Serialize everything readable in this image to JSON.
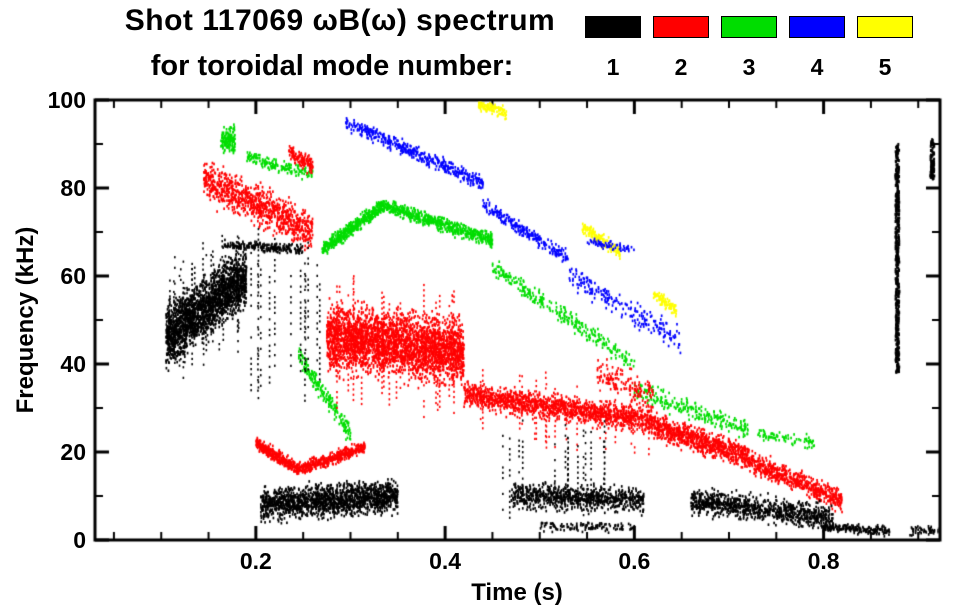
{
  "chart_data": {
    "type": "scatter",
    "title": "Shot 117069 ωB(ω) spectrum",
    "subtitle": "for toroidal mode number:",
    "xlabel": "Time (s)",
    "ylabel": "Frequency (kHz)",
    "xlim": [
      0.03,
      0.923
    ],
    "ylim": [
      0,
      100
    ],
    "grid": false,
    "legend_position": "top-right",
    "x_ticks": [
      {
        "value": 0.2,
        "label": "0.2"
      },
      {
        "value": 0.4,
        "label": "0.4"
      },
      {
        "value": 0.6,
        "label": "0.6"
      },
      {
        "value": 0.8,
        "label": "0.8"
      }
    ],
    "y_ticks": [
      {
        "value": 0,
        "label": "0"
      },
      {
        "value": 20,
        "label": "20"
      },
      {
        "value": 40,
        "label": "40"
      },
      {
        "value": 60,
        "label": "60"
      },
      {
        "value": 80,
        "label": "80"
      },
      {
        "value": 100,
        "label": "100"
      }
    ],
    "x_minor_step": 0.05,
    "y_minor_step": 10,
    "legend": [
      {
        "label": "1",
        "color": "#000000"
      },
      {
        "label": "2",
        "color": "#ff0000"
      },
      {
        "label": "3",
        "color": "#00dd00"
      },
      {
        "label": "4",
        "color": "#0000ff"
      },
      {
        "label": "5",
        "color": "#ffff00"
      }
    ],
    "series": [
      {
        "name": "toroidal mode n=5",
        "color": "#ffff00",
        "clusters": [
          {
            "kind": "blob",
            "t": [
              0.435,
              0.465
            ],
            "f": [
              99,
              97
            ],
            "spread": 1.8,
            "n": 110
          },
          {
            "kind": "blob",
            "t": [
              0.545,
              0.585
            ],
            "f": [
              71,
              65
            ],
            "spread": 2.2,
            "n": 140
          },
          {
            "kind": "blob",
            "t": [
              0.62,
              0.645
            ],
            "f": [
              56,
              52
            ],
            "spread": 1.8,
            "n": 90
          }
        ]
      },
      {
        "name": "toroidal mode n=4",
        "color": "#0000ff",
        "clusters": [
          {
            "kind": "blob",
            "t": [
              0.295,
              0.44
            ],
            "f": [
              95,
              81
            ],
            "spread": 2.3,
            "n": 430
          },
          {
            "kind": "blob",
            "t": [
              0.44,
              0.53
            ],
            "f": [
              76,
              64
            ],
            "spread": 2.3,
            "n": 240
          },
          {
            "kind": "blob",
            "t": [
              0.53,
              0.65
            ],
            "f": [
              60,
              45
            ],
            "spread": 4,
            "n": 210
          },
          {
            "kind": "blob",
            "t": [
              0.55,
              0.6
            ],
            "f": [
              68,
              66
            ],
            "spread": 1.5,
            "n": 60
          }
        ]
      },
      {
        "name": "toroidal mode n=3",
        "color": "#00dd00",
        "clusters": [
          {
            "kind": "blob",
            "t": [
              0.163,
              0.178
            ],
            "f": [
              91,
              91
            ],
            "spread": 4,
            "n": 140
          },
          {
            "kind": "blob",
            "t": [
              0.19,
              0.26
            ],
            "f": [
              87,
              83
            ],
            "spread": 2,
            "n": 160
          },
          {
            "kind": "blob",
            "t": [
              0.27,
              0.335
            ],
            "f": [
              66,
              76
            ],
            "spread": 2.2,
            "n": 520
          },
          {
            "kind": "blob",
            "t": [
              0.335,
              0.45
            ],
            "f": [
              76,
              68
            ],
            "spread": 2.2,
            "n": 620
          },
          {
            "kind": "blob",
            "t": [
              0.45,
              0.6
            ],
            "f": [
              62,
              40
            ],
            "spread": 3,
            "n": 300
          },
          {
            "kind": "blob",
            "t": [
              0.6,
              0.72
            ],
            "f": [
              34,
              25
            ],
            "spread": 3,
            "n": 250
          },
          {
            "kind": "blob",
            "t": [
              0.245,
              0.3
            ],
            "f": [
              42,
              24
            ],
            "spread": 3,
            "n": 200
          },
          {
            "kind": "blob",
            "t": [
              0.73,
              0.79
            ],
            "f": [
              24,
              22
            ],
            "spread": 2,
            "n": 80
          }
        ]
      },
      {
        "name": "toroidal mode n=2",
        "color": "#ff0000",
        "clusters": [
          {
            "kind": "blob",
            "t": [
              0.145,
              0.26
            ],
            "f": [
              82,
              70
            ],
            "spread": 6,
            "n": 900
          },
          {
            "kind": "blob",
            "t": [
              0.235,
              0.26
            ],
            "f": [
              88,
              85
            ],
            "spread": 2.5,
            "n": 130
          },
          {
            "kind": "blob",
            "t": [
              0.2,
              0.245
            ],
            "f": [
              22,
              16
            ],
            "spread": 2,
            "n": 350
          },
          {
            "kind": "blob",
            "t": [
              0.245,
              0.315
            ],
            "f": [
              16,
              21
            ],
            "spread": 2,
            "n": 420
          },
          {
            "kind": "blob",
            "t": [
              0.275,
              0.42
            ],
            "f": [
              46,
              43
            ],
            "spread": 10,
            "n": 3000
          },
          {
            "kind": "vstreak",
            "t": [
              0.28,
              0.42
            ],
            "f": [
              46,
              43
            ],
            "spread": 16,
            "streaks": 22
          },
          {
            "kind": "blob",
            "t": [
              0.42,
              0.62
            ],
            "f": [
              33,
              27
            ],
            "spread": 4,
            "n": 1400
          },
          {
            "kind": "vstreak",
            "t": [
              0.43,
              0.62
            ],
            "f": [
              32,
              27
            ],
            "spread": 9,
            "streaks": 18
          },
          {
            "kind": "blob",
            "t": [
              0.62,
              0.72
            ],
            "f": [
              26,
              19
            ],
            "spread": 4,
            "n": 800
          },
          {
            "kind": "blob",
            "t": [
              0.72,
              0.82
            ],
            "f": [
              18,
              9
            ],
            "spread": 3.5,
            "n": 600
          },
          {
            "kind": "blob",
            "t": [
              0.56,
              0.62
            ],
            "f": [
              38,
              33
            ],
            "spread": 5,
            "n": 150
          }
        ]
      },
      {
        "name": "toroidal mode n=1",
        "color": "#000000",
        "clusters": [
          {
            "kind": "blob",
            "t": [
              0.105,
              0.19
            ],
            "f": [
              46,
              60
            ],
            "spread": 9,
            "n": 2000
          },
          {
            "kind": "vstreak",
            "t": [
              0.108,
              0.19
            ],
            "f": [
              52,
              56
            ],
            "spread": 16,
            "streaks": 22
          },
          {
            "kind": "vstreak",
            "t": [
              0.19,
              0.268
            ],
            "f": [
              50,
              50
            ],
            "spread": 22,
            "streaks": 13
          },
          {
            "kind": "blob",
            "t": [
              0.165,
              0.25
            ],
            "f": [
              67,
              66
            ],
            "spread": 1.5,
            "n": 200
          },
          {
            "kind": "blob",
            "t": [
              0.205,
              0.35
            ],
            "f": [
              8,
              10
            ],
            "spread": 5,
            "n": 1600
          },
          {
            "kind": "vstreak",
            "t": [
              0.46,
              0.58
            ],
            "f": [
              17,
              17
            ],
            "spread": 12,
            "streaks": 16
          },
          {
            "kind": "blob",
            "t": [
              0.47,
              0.61
            ],
            "f": [
              10,
              9
            ],
            "spread": 4,
            "n": 800
          },
          {
            "kind": "blob",
            "t": [
              0.5,
              0.6
            ],
            "f": [
              3,
              3
            ],
            "spread": 1.5,
            "n": 120
          },
          {
            "kind": "blob",
            "t": [
              0.66,
              0.81
            ],
            "f": [
              9,
              5
            ],
            "spread": 4,
            "n": 900
          },
          {
            "kind": "blob",
            "t": [
              0.8,
              0.87
            ],
            "f": [
              3,
              2
            ],
            "spread": 1.5,
            "n": 180
          },
          {
            "kind": "vline",
            "t": 0.878,
            "f": [
              38,
              90
            ],
            "n": 420
          },
          {
            "kind": "vline",
            "t": 0.915,
            "f": [
              82,
              91
            ],
            "n": 90
          },
          {
            "kind": "blob",
            "t": [
              0.89,
              0.93
            ],
            "f": [
              2,
              2
            ],
            "spread": 1.5,
            "n": 60
          }
        ]
      }
    ]
  }
}
